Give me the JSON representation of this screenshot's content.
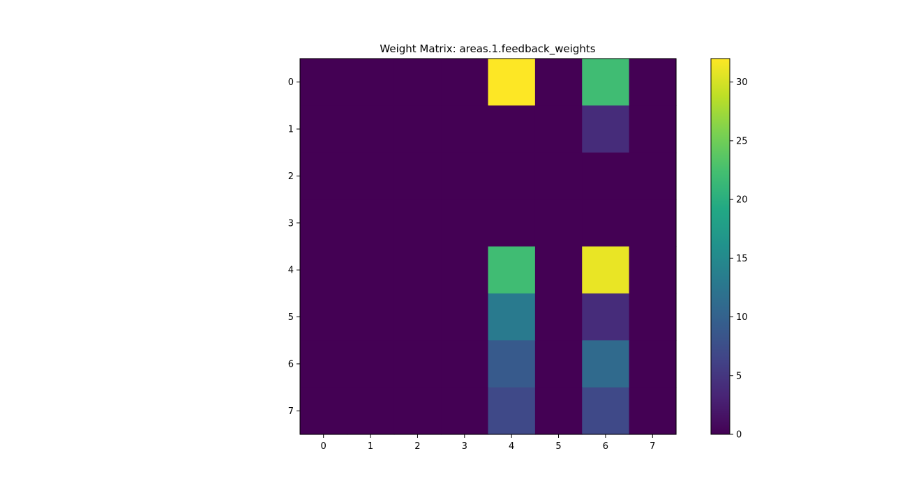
{
  "chart_data": {
    "type": "heatmap",
    "title": "Weight Matrix: areas.1.feedback_weights",
    "xlabel": "",
    "ylabel": "",
    "x_ticks": [
      "0",
      "1",
      "2",
      "3",
      "4",
      "5",
      "6",
      "7"
    ],
    "y_ticks": [
      "0",
      "1",
      "2",
      "3",
      "4",
      "5",
      "6",
      "7"
    ],
    "values": [
      [
        0,
        0,
        0,
        0,
        32,
        0,
        22,
        0
      ],
      [
        0,
        0,
        0,
        0,
        0,
        0,
        4,
        0
      ],
      [
        0,
        0,
        0,
        0,
        0,
        0,
        0,
        0
      ],
      [
        0,
        0,
        0,
        0,
        0,
        0,
        0,
        0
      ],
      [
        0,
        0,
        0,
        0,
        22,
        0,
        31,
        0
      ],
      [
        0,
        0,
        0,
        0,
        13,
        0,
        4,
        0
      ],
      [
        0,
        0,
        0,
        0,
        9,
        0,
        11,
        0
      ],
      [
        0,
        0,
        0,
        0,
        7,
        0,
        7,
        0
      ]
    ],
    "vmin": 0,
    "vmax": 32,
    "colormap": "viridis",
    "colorbar": {
      "ticks": [
        0,
        5,
        10,
        15,
        20,
        25,
        30
      ],
      "tick_labels": [
        "0",
        "5",
        "10",
        "15",
        "20",
        "25",
        "30"
      ]
    },
    "grid": false
  }
}
